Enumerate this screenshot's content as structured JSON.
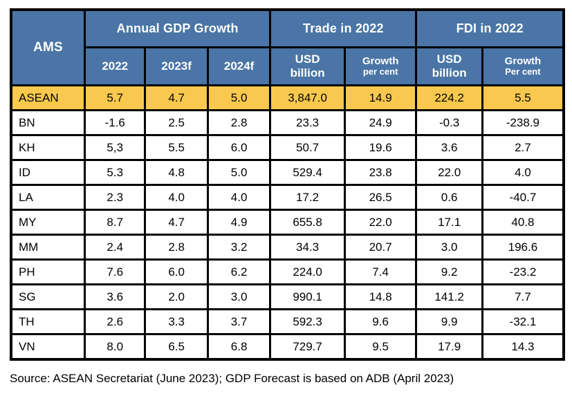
{
  "colors": {
    "header_bg": "#4A75A6",
    "header_text": "#ffffff",
    "highlight_row_bg": "#F8C94E",
    "grid_border": "#000000",
    "row_bg": "#ffffff",
    "body_text": "#000000"
  },
  "chart_data": {
    "type": "table",
    "header": {
      "ams_label": "AMS",
      "groups": [
        {
          "label": "Annual GDP Growth",
          "colspan": 3
        },
        {
          "label": "Trade in 2022",
          "colspan": 2
        },
        {
          "label": "FDI in 2022",
          "colspan": 2
        }
      ],
      "subheaders": [
        {
          "line1": "2022",
          "line2": ""
        },
        {
          "line1": "2023f",
          "line2": ""
        },
        {
          "line1": "2024f",
          "line2": ""
        },
        {
          "line1": "USD",
          "line2": "billion"
        },
        {
          "line1": "Growth",
          "line2": "per cent"
        },
        {
          "line1": "USD",
          "line2": "billion"
        },
        {
          "line1": "Growth",
          "line2": "Per cent"
        }
      ],
      "columns_flat": [
        "AMS",
        "Annual GDP Growth 2022",
        "Annual GDP Growth 2023f",
        "Annual GDP Growth 2024f",
        "Trade in 2022 USD billion",
        "Trade in 2022 Growth per cent",
        "FDI in 2022 USD billion",
        "FDI in 2022 Growth Per cent"
      ]
    },
    "rows": [
      {
        "ams": "ASEAN",
        "highlight": true,
        "values": [
          "5.7",
          "4.7",
          "5.0",
          "3,847.0",
          "14.9",
          "224.2",
          "5.5"
        ]
      },
      {
        "ams": "BN",
        "highlight": false,
        "values": [
          "-1.6",
          "2.5",
          "2.8",
          "23.3",
          "24.9",
          "-0.3",
          "-238.9"
        ]
      },
      {
        "ams": "KH",
        "highlight": false,
        "values": [
          "5,3",
          "5.5",
          "6.0",
          "50.7",
          "19.6",
          "3.6",
          "2.7"
        ]
      },
      {
        "ams": "ID",
        "highlight": false,
        "values": [
          "5.3",
          "4.8",
          "5.0",
          "529.4",
          "23.8",
          "22.0",
          "4.0"
        ]
      },
      {
        "ams": "LA",
        "highlight": false,
        "values": [
          "2.3",
          "4.0",
          "4.0",
          "17.2",
          "26.5",
          "0.6",
          "-40.7"
        ]
      },
      {
        "ams": "MY",
        "highlight": false,
        "values": [
          "8.7",
          "4.7",
          "4.9",
          "655.8",
          "22.0",
          "17.1",
          "40.8"
        ]
      },
      {
        "ams": "MM",
        "highlight": false,
        "values": [
          "2.4",
          "2.8",
          "3.2",
          "34.3",
          "20.7",
          "3.0",
          "196.6"
        ]
      },
      {
        "ams": "PH",
        "highlight": false,
        "values": [
          "7.6",
          "6.0",
          "6.2",
          "224.0",
          "7.4",
          "9.2",
          "-23.2"
        ]
      },
      {
        "ams": "SG",
        "highlight": false,
        "values": [
          "3.6",
          "2.0",
          "3.0",
          "990.1",
          "14.8",
          "141.2",
          "7.7"
        ]
      },
      {
        "ams": "TH",
        "highlight": false,
        "values": [
          "2.6",
          "3.3",
          "3.7",
          "592.3",
          "9.6",
          "9.9",
          "-32.1"
        ]
      },
      {
        "ams": "VN",
        "highlight": false,
        "values": [
          "8.0",
          "6.5",
          "6.8",
          "729.7",
          "9.5",
          "17.9",
          "14.3"
        ]
      }
    ],
    "source": "Source: ASEAN Secretariat (June 2023); GDP Forecast is based on ADB (April 2023)"
  }
}
